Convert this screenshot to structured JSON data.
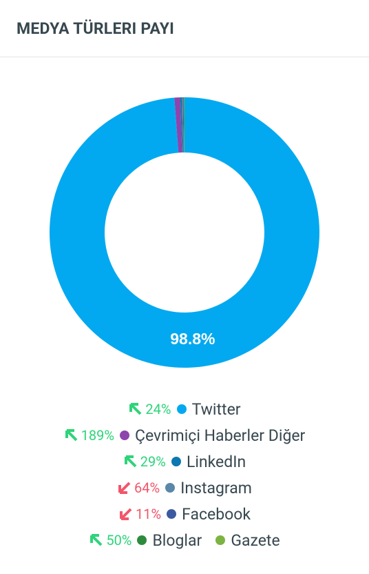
{
  "header": {
    "title": "MEDYA TÜRLERI PAYI"
  },
  "chart_data": {
    "type": "donut",
    "categories": [
      "Twitter",
      "Çevrimiçi Haberler Diğer",
      "LinkedIn",
      "Instagram",
      "Facebook",
      "Bloglar",
      "Gazete"
    ],
    "values": [
      98.8,
      0.7,
      0.2,
      0.1,
      0.1,
      0.05,
      0.05
    ],
    "value_labels": [
      "98.8%",
      null,
      null,
      null,
      null,
      null,
      null
    ],
    "colors": [
      "#03a9f0",
      "#8e44ad",
      "#0b78b0",
      "#5b87a8",
      "#3b5aa0",
      "#2e8b3e",
      "#7cb342"
    ],
    "changes": [
      {
        "value": 24,
        "label": "24%",
        "direction": "up"
      },
      {
        "value": 189,
        "label": "189%",
        "direction": "up"
      },
      {
        "value": 29,
        "label": "29%",
        "direction": "up"
      },
      {
        "value": 64,
        "label": "64%",
        "direction": "down"
      },
      {
        "value": 11,
        "label": "11%",
        "direction": "down"
      },
      {
        "value": 50,
        "label": "50%",
        "direction": "up"
      },
      null
    ]
  }
}
